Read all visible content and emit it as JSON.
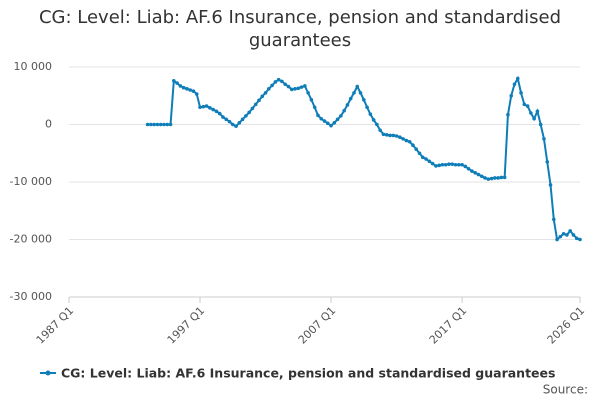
{
  "chart_data": {
    "type": "line",
    "title": "CG: Level: Liab: AF.6 Insurance, pension and standardised guarantees",
    "source": "Source:",
    "xlim": [
      1987,
      2026
    ],
    "xticks": [
      {
        "value": 1987,
        "label": "1987 Q1"
      },
      {
        "value": 1997,
        "label": "1997 Q1"
      },
      {
        "value": 2007,
        "label": "2007 Q1"
      },
      {
        "value": 2017,
        "label": "2017 Q1"
      },
      {
        "value": 2026,
        "label": "2026 Q1"
      }
    ],
    "ylim": [
      -30000,
      10000
    ],
    "yticks": [
      {
        "value": -30000,
        "label": "-30 000"
      },
      {
        "value": -20000,
        "label": "-20 000"
      },
      {
        "value": -10000,
        "label": "-10 000"
      },
      {
        "value": 0,
        "label": "0"
      },
      {
        "value": 10000,
        "label": "10 000"
      }
    ],
    "grid": true,
    "x": [
      1993,
      1993.25,
      1993.5,
      1993.75,
      1994,
      1994.25,
      1994.5,
      1994.75,
      1995,
      1995.25,
      1995.5,
      1995.75,
      1996,
      1996.25,
      1996.5,
      1996.75,
      1997,
      1997.25,
      1997.5,
      1997.75,
      1998,
      1998.25,
      1998.5,
      1998.75,
      1999,
      1999.25,
      1999.5,
      1999.75,
      2000,
      2000.25,
      2000.5,
      2000.75,
      2001,
      2001.25,
      2001.5,
      2001.75,
      2002,
      2002.25,
      2002.5,
      2002.75,
      2003,
      2003.25,
      2003.5,
      2003.75,
      2004,
      2004.25,
      2004.5,
      2004.75,
      2005,
      2005.25,
      2005.5,
      2005.75,
      2006,
      2006.25,
      2006.5,
      2006.75,
      2007,
      2007.25,
      2007.5,
      2007.75,
      2008,
      2008.25,
      2008.5,
      2008.75,
      2009,
      2009.25,
      2009.5,
      2009.75,
      2010,
      2010.25,
      2010.5,
      2010.75,
      2011,
      2011.25,
      2011.5,
      2011.75,
      2012,
      2012.25,
      2012.5,
      2012.75,
      2013,
      2013.25,
      2013.5,
      2013.75,
      2014,
      2014.25,
      2014.5,
      2014.75,
      2015,
      2015.25,
      2015.5,
      2015.75,
      2016,
      2016.25,
      2016.5,
      2016.75,
      2017,
      2017.25,
      2017.5,
      2017.75,
      2018,
      2018.25,
      2018.5,
      2018.75,
      2019,
      2019.25,
      2019.5,
      2019.75,
      2020,
      2020.25,
      2020.5,
      2020.75,
      2021,
      2021.25,
      2021.5,
      2021.75,
      2022,
      2022.25,
      2022.5,
      2022.75,
      2023,
      2023.25,
      2023.5,
      2023.75,
      2024,
      2024.25,
      2024.5,
      2024.75,
      2025,
      2025.25,
      2025.5,
      2025.75,
      2026
    ],
    "series": [
      {
        "name": "CG: Level: Liab: AF.6 Insurance, pension and standardised guarantees",
        "color": "#0f7db8",
        "values": [
          0,
          0,
          0,
          0,
          0,
          0,
          0,
          0,
          7600,
          7200,
          6700,
          6400,
          6200,
          6000,
          5800,
          5300,
          3000,
          3100,
          3200,
          2900,
          2600,
          2300,
          1900,
          1300,
          900,
          500,
          0,
          -300,
          300,
          900,
          1500,
          2100,
          2800,
          3500,
          4200,
          4900,
          5500,
          6200,
          6800,
          7400,
          7800,
          7500,
          7000,
          6600,
          6100,
          6200,
          6300,
          6500,
          6700,
          5500,
          4300,
          3000,
          1600,
          1000,
          600,
          200,
          -200,
          300,
          900,
          1500,
          2400,
          3400,
          4500,
          5500,
          6600,
          5500,
          4300,
          3000,
          1800,
          800,
          0,
          -1000,
          -1700,
          -1800,
          -1900,
          -1900,
          -2000,
          -2200,
          -2500,
          -2800,
          -3000,
          -3600,
          -4300,
          -5000,
          -5700,
          -6000,
          -6400,
          -6800,
          -7200,
          -7100,
          -7000,
          -7000,
          -6900,
          -6900,
          -7000,
          -7000,
          -7000,
          -7300,
          -7700,
          -8100,
          -8400,
          -8700,
          -9000,
          -9300,
          -9500,
          -9400,
          -9300,
          -9300,
          -9200,
          -9200,
          1700,
          5000,
          7000,
          8000,
          5500,
          3500,
          3200,
          2000,
          1000,
          2300,
          0,
          -2500,
          -6500,
          -10500,
          -16500,
          -20000,
          -19500,
          -19000,
          -19200,
          -18500,
          -19200,
          -19800,
          -20000
        ]
      }
    ]
  }
}
